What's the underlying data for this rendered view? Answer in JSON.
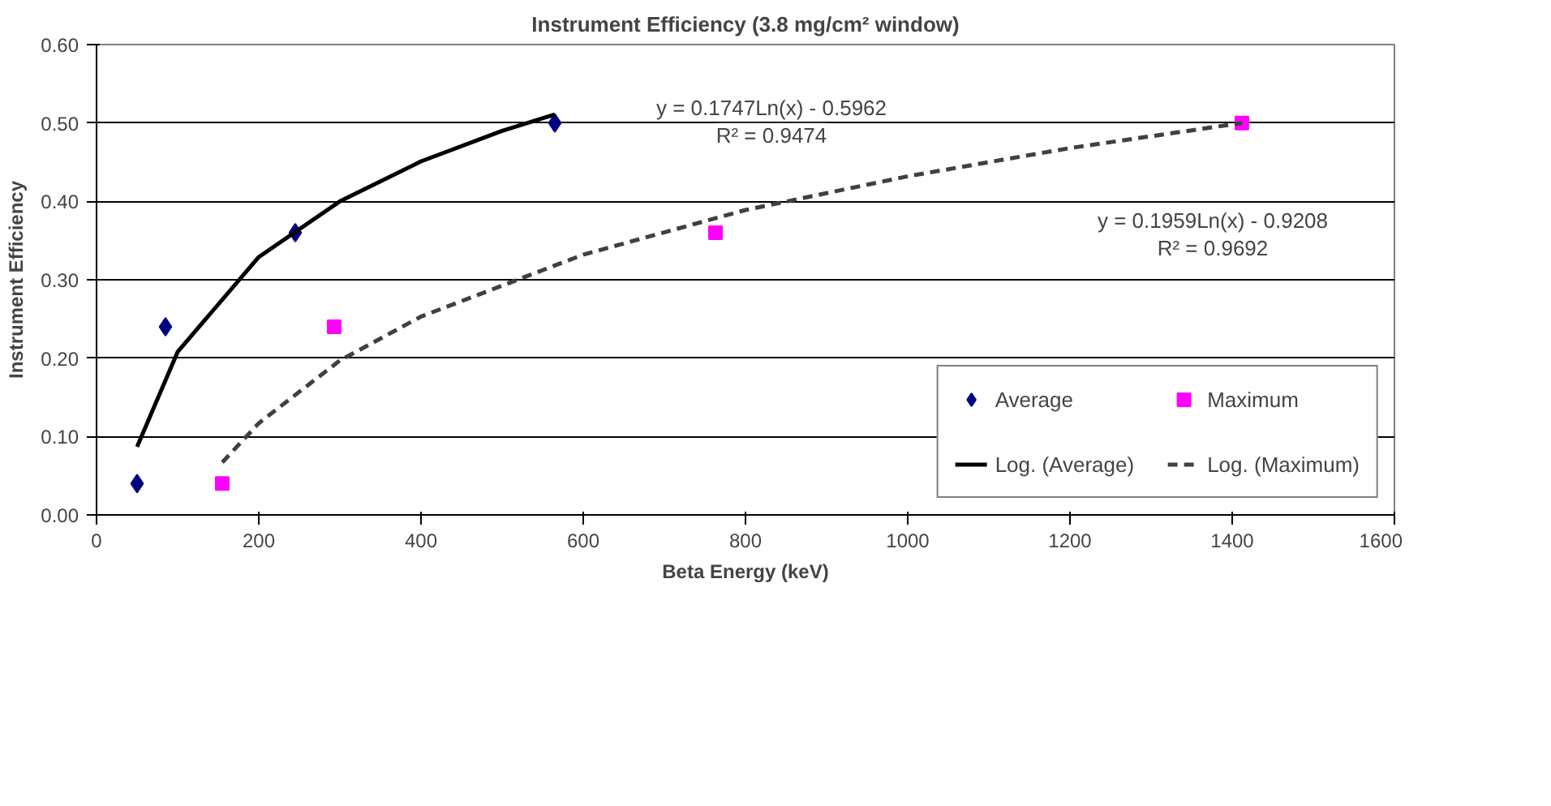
{
  "chart_data": {
    "type": "scatter",
    "title": "Instrument Efficiency (3.8 mg/cm² window)",
    "xlabel": "Beta Energy (keV)",
    "ylabel": "Instrument Efficiency",
    "xlim": [
      0,
      1600
    ],
    "xticks": [
      0,
      200,
      400,
      600,
      800,
      1000,
      1200,
      1400,
      1600
    ],
    "ylim": [
      0,
      0.6
    ],
    "yticks": [
      {
        "value": 0,
        "label": "0.00"
      },
      {
        "value": 0.1,
        "label": "0.10"
      },
      {
        "value": 0.2,
        "label": "0.20"
      },
      {
        "value": 0.3,
        "label": "0.30"
      },
      {
        "value": 0.4,
        "label": "0.40"
      },
      {
        "value": 0.5,
        "label": "0.50"
      },
      {
        "value": 0.6,
        "label": "0.60"
      }
    ],
    "grid": "y",
    "legend": "bottom right",
    "series": [
      {
        "name": "Average",
        "type": "scatter",
        "marker": "diamond",
        "color": "#000080",
        "x": [
          50,
          85,
          245,
          565
        ],
        "values": [
          0.04,
          0.24,
          0.36,
          0.5
        ]
      },
      {
        "name": "Maximum",
        "type": "scatter",
        "marker": "square",
        "color": "#ff00ff",
        "x": [
          155,
          293,
          763,
          1412
        ],
        "values": [
          0.04,
          0.24,
          0.36,
          0.5
        ]
      },
      {
        "name": "Log. (Average)",
        "type": "line",
        "line_style": "solid",
        "color": "#000000",
        "x": [
          50,
          100,
          200,
          300,
          400,
          500,
          565
        ],
        "values": [
          0.087,
          0.208,
          0.329,
          0.4,
          0.451,
          0.49,
          0.511
        ]
      },
      {
        "name": "Log. (Maximum)",
        "type": "line",
        "line_style": "dashed",
        "color": "#404040",
        "x": [
          155,
          200,
          300,
          400,
          600,
          800,
          1000,
          1200,
          1412
        ],
        "values": [
          0.067,
          0.117,
          0.197,
          0.253,
          0.332,
          0.389,
          0.432,
          0.468,
          0.5
        ]
      }
    ],
    "annotations": [
      "y = 0.1747Ln(x) - 0.5962\nR² = 0.9474",
      "y = 0.1959Ln(x) - 0.9208\nR² = 0.9692"
    ]
  }
}
